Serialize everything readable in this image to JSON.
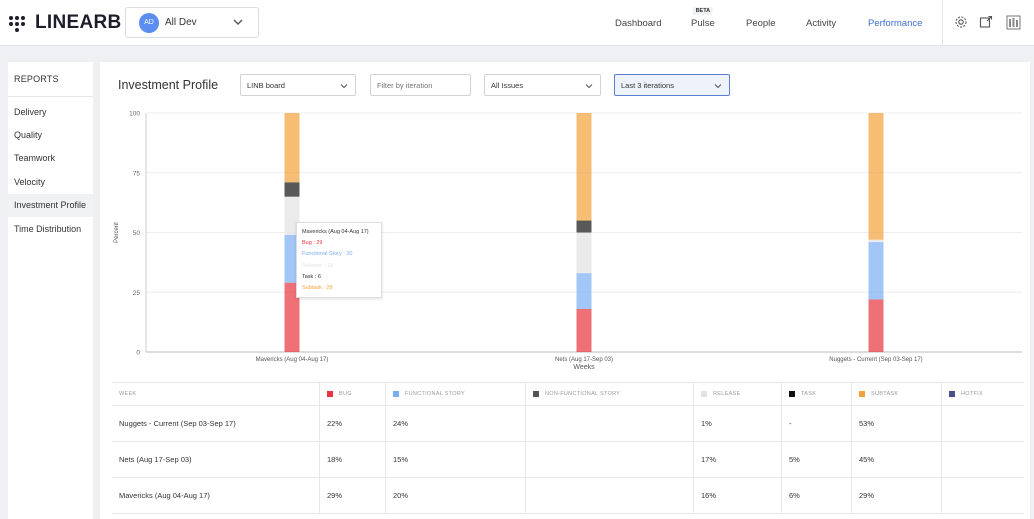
{
  "app": {
    "logo_text": "LINEARB"
  },
  "team": {
    "avatar": "AD",
    "name": "All Dev"
  },
  "nav": [
    {
      "label": "Dashboard"
    },
    {
      "label": "Pulse",
      "badge": "BETA"
    },
    {
      "label": "People"
    },
    {
      "label": "Activity"
    },
    {
      "label": "Performance"
    }
  ],
  "toolbar_icons": [
    "gear-icon",
    "export-icon",
    "org-icon"
  ],
  "sidebar": {
    "title": "REPORTS",
    "items": [
      {
        "label": "Delivery"
      },
      {
        "label": "Quality"
      },
      {
        "label": "Teamwork"
      },
      {
        "label": "Velocity"
      },
      {
        "label": "Investment Profile"
      },
      {
        "label": "Time Distribution"
      }
    ]
  },
  "page": {
    "title": "Investment Profile"
  },
  "filters": {
    "board": "LINB board",
    "iteration_placeholder": "Filter by iteration",
    "issues": "All Issues",
    "range": "Last 3 iterations"
  },
  "colors": {
    "bug": "#e8343f",
    "functional_story": "#7aaef2",
    "non_functional_story": "#555555",
    "release": "#e3e3e3",
    "task": "#111111",
    "subtask": "#f2a23a",
    "hotfix": "#4b4e86"
  },
  "chart_data": {
    "type": "bar",
    "stacked": true,
    "xlabel": "Weeks",
    "ylabel": "Percent",
    "ylim": [
      0,
      100
    ],
    "yticks": [
      0,
      25,
      50,
      75,
      100
    ],
    "categories": [
      "Mavericks (Aug 04-Aug 17)",
      "Nets (Aug 17-Sep 03)",
      "Nuggets - Current (Sep 03-Sep 17)"
    ],
    "series": [
      {
        "name": "Bug",
        "color_key": "bug",
        "values": [
          29,
          18,
          22
        ]
      },
      {
        "name": "Functional Story",
        "color_key": "functional_story",
        "values": [
          20,
          15,
          24
        ]
      },
      {
        "name": "Release",
        "color_key": "release",
        "values": [
          16,
          17,
          1
        ]
      },
      {
        "name": "Task",
        "color_key": "task",
        "values": [
          6,
          5,
          0
        ]
      },
      {
        "name": "Subtask",
        "color_key": "subtask",
        "values": [
          29,
          45,
          53
        ]
      }
    ],
    "highlight_index": 0
  },
  "tooltip": {
    "title": "Mavericks (Aug 04-Aug 17)",
    "lines": [
      {
        "text": "Bug : 29",
        "color": "#e8343f"
      },
      {
        "text": "Functional Story : 20",
        "color": "#7aaef2"
      },
      {
        "text": "Release : 16",
        "color": "#e3e3e3"
      },
      {
        "text": "Task : 6",
        "color": "#333333"
      },
      {
        "text": "Subtask : 29",
        "color": "#f2a23a"
      }
    ]
  },
  "table": {
    "headers": [
      {
        "label": "WEEK"
      },
      {
        "label": "BUG",
        "color": "#e8343f"
      },
      {
        "label": "FUNCTIONAL STORY",
        "color": "#7aaef2"
      },
      {
        "label": "NON-FUNCTIONAL STORY",
        "color": "#555555"
      },
      {
        "label": "RELEASE",
        "color": "#e3e3e3"
      },
      {
        "label": "TASK",
        "color": "#111111"
      },
      {
        "label": "SUBTASK",
        "color": "#f2a23a"
      },
      {
        "label": "HOTFIX",
        "color": "#4b4e86"
      }
    ],
    "rows": [
      [
        "Nuggets - Current (Sep 03-Sep 17)",
        "22%",
        "24%",
        "",
        "1%",
        "-",
        "53%",
        ""
      ],
      [
        "Nets (Aug 17-Sep 03)",
        "18%",
        "15%",
        "",
        "17%",
        "5%",
        "45%",
        ""
      ],
      [
        "Mavericks (Aug 04-Aug 17)",
        "29%",
        "20%",
        "",
        "16%",
        "6%",
        "29%",
        ""
      ]
    ]
  }
}
